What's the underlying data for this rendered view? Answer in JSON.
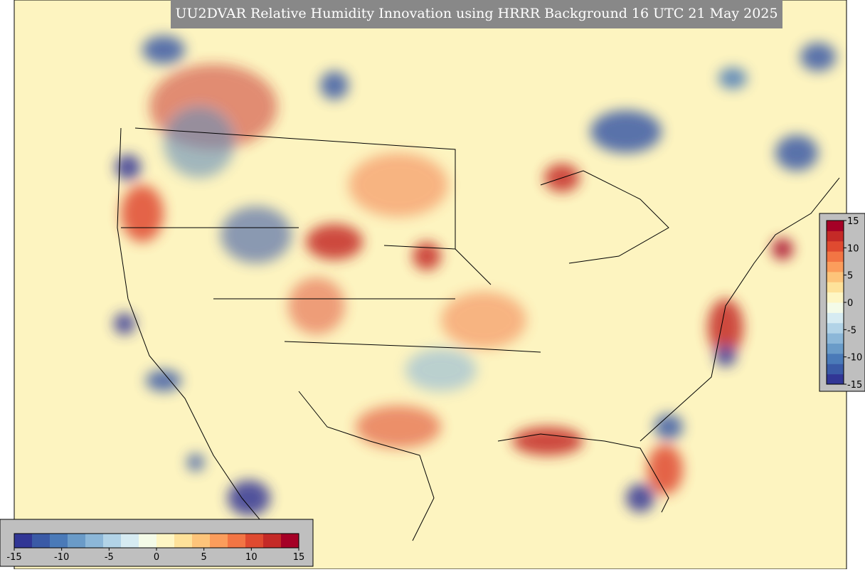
{
  "title": "UU2DVAR Relative Humidity Innovation using HRRR Background 16 UTC 21 May 2025",
  "colorbar_horizontal": {
    "lim": [
      -15,
      15
    ],
    "ticks": [
      -15,
      -10,
      -5,
      0,
      5,
      10,
      15
    ]
  },
  "colorbar_vertical": {
    "lim": [
      -15,
      15
    ],
    "ticks": [
      15,
      10,
      5,
      0,
      -5,
      -10,
      -15
    ]
  },
  "colors": [
    "#313695",
    "#3a5aa6",
    "#4a7ab8",
    "#6a9bc8",
    "#8cb7d8",
    "#b2d3e7",
    "#d6ebf2",
    "#f4fbe8",
    "#fef6c4",
    "#fee29a",
    "#fdc47a",
    "#fb9d5c",
    "#f27544",
    "#df4a30",
    "#c42a27",
    "#a50026"
  ]
}
